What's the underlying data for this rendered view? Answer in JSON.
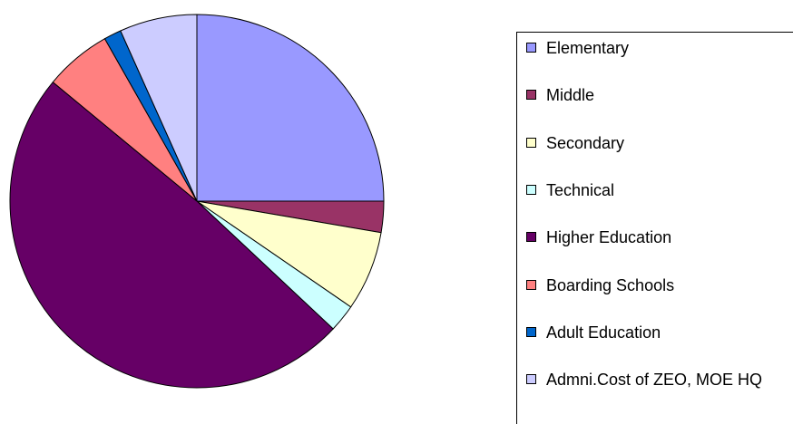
{
  "chart_data": {
    "type": "pie",
    "categories": [
      "Elementary",
      "Middle",
      "Secondary",
      "Technical",
      "Higher Education",
      "Boarding Schools",
      "Adult Education",
      "Admni.Cost of ZEO, MOE HQ"
    ],
    "values": [
      25,
      2.7,
      6.9,
      2.4,
      49,
      5.8,
      1.5,
      6.7
    ],
    "colors": [
      "#9999ff",
      "#993366",
      "#ffffcc",
      "#ccffff",
      "#660066",
      "#ff8080",
      "#0066cc",
      "#ccccff"
    ],
    "legend": "right"
  }
}
